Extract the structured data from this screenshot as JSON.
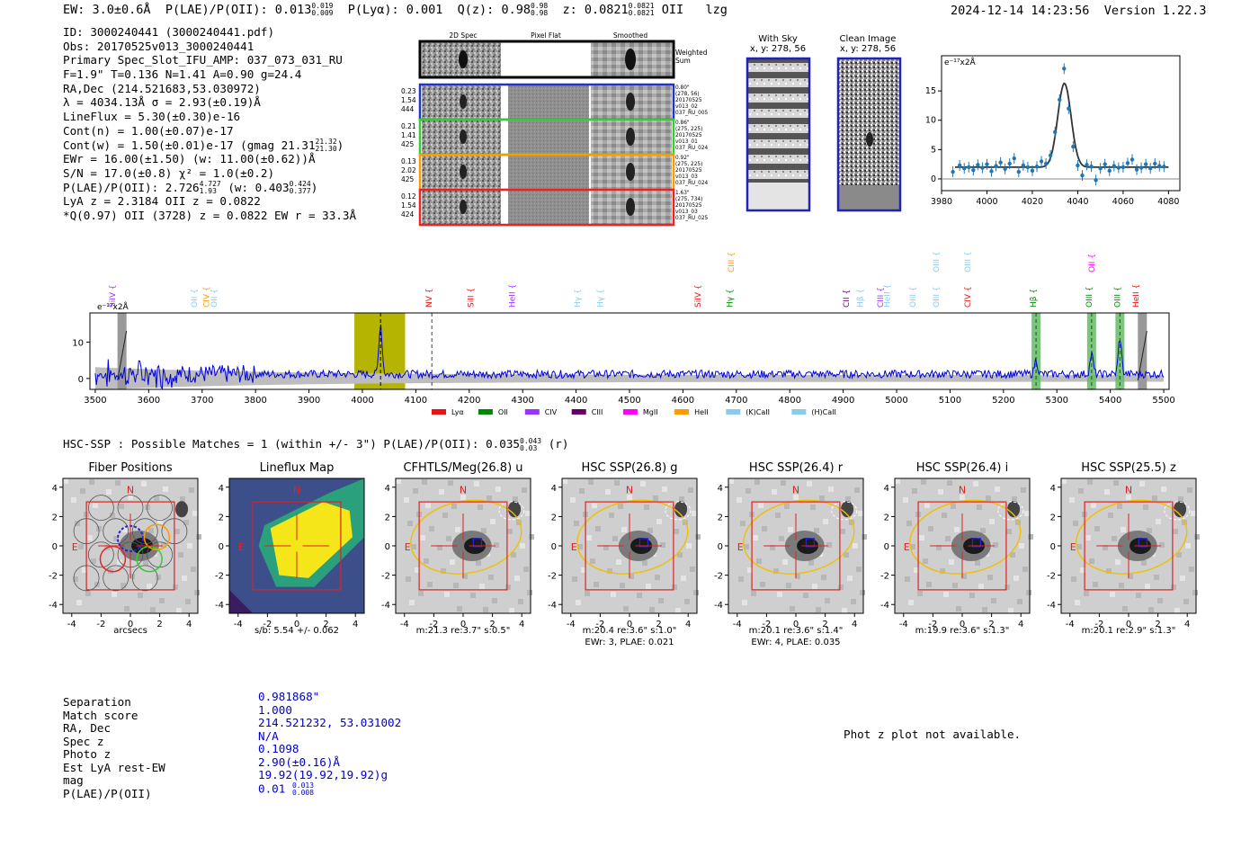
{
  "header": {
    "ew": "EW: 3.0±0.6Å",
    "plae": "P(LAE)/P(OII): 0.013",
    "plae_hi": "0.019",
    "plae_lo": "0.009",
    "plya": "P(Lyα): 0.001",
    "qz": "Q(z): 0.98",
    "qz_hi": "0.98",
    "qz_lo": "0.98",
    "z": "z: 0.0821",
    "z_hi": "0.0821",
    "z_lo": "0.0821",
    "z_line": "OII",
    "tag": "lzg",
    "timestamp": "2024-12-14 14:23:56",
    "version": "Version 1.22.3"
  },
  "info": {
    "id": "ID: 3000240441 (3000240441.pdf)",
    "obs": "Obs: 20170525v013_3000240441",
    "primary": "Primary Spec_Slot_IFU_AMP: 037_073_031_RU",
    "params": "F=1.9\"  T=0.136  N=1.41  A=0.90  g=24.4",
    "radec": "RA,Dec (214.521683,53.030972)",
    "lambda": "λ = 4034.13Å  σ = 2.93(±0.19)Å",
    "lineflux": "LineFlux = 5.30(±0.30)e-16",
    "contn": "Cont(n) = 1.00(±0.07)e-17",
    "contw": "Cont(w) = 1.50(±0.01)e-17 (gmag 21.31",
    "gmag_hi": "21.32",
    "gmag_lo": "21.30",
    "ewr": "EWr = 16.00(±1.50) (w: 11.00(±0.62))Å",
    "sn": "S/N = 17.0(±0.8)  χ² = 1.0(±0.2)",
    "plae": "P(LAE)/P(OII): 2.726",
    "plae_hi": "4.727",
    "plae_lo": "1.93",
    "plae_w": "(w: 0.403",
    "plae_w_hi": "0.424",
    "plae_w_lo": "0.377",
    "lya": "LyA z = 2.3184  OII z = 0.0822",
    "q": "*Q(0.97) OII (3728) z = 0.0822  EW r = 33.3Å"
  },
  "cutouts": {
    "col_headers": [
      "2D Spec",
      "Pixel Flat",
      "Smoothed"
    ],
    "weighted_label_1": "Weighted",
    "weighted_label_2": "Sum",
    "rows": [
      {
        "left": [
          "0.23",
          "1.54",
          "444"
        ],
        "right": [
          "0.80\"",
          "(278, 56)",
          "20170525",
          "v013_02",
          "037_RU_005"
        ],
        "color": "#2233cc"
      },
      {
        "left": [
          "0.21",
          "1.41",
          "425"
        ],
        "right": [
          "0.86\"",
          "(275, 225)",
          "20170525",
          "v013_01",
          "037_RU_024"
        ],
        "color": "#33cc33"
      },
      {
        "left": [
          "0.13",
          "2.02",
          "425"
        ],
        "right": [
          "0.92\"",
          "(275, 225)",
          "20170525",
          "v013_03",
          "037_RU_024"
        ],
        "color": "#ff9900"
      },
      {
        "left": [
          "0.12",
          "1.54",
          "424"
        ],
        "right": [
          "1.63\"",
          "(275, 734)",
          "20170525",
          "v013_03",
          "037_RU_025"
        ],
        "color": "#ee2222"
      }
    ]
  },
  "sky": {
    "with_sky_title": "With Sky",
    "with_sky_xy": "x, y: 278, 56",
    "clean_title": "Clean Image",
    "clean_xy": "x, y: 278, 56"
  },
  "chart_data": [
    {
      "type": "line",
      "title": "Line fit",
      "ylabel": "e⁻¹⁷x2Å",
      "xlim": [
        3980,
        4085
      ],
      "ylim": [
        -2,
        21
      ],
      "xticks": [
        3980,
        4000,
        4020,
        4040,
        4060,
        4080
      ],
      "yticks": [
        0,
        5,
        10,
        15
      ],
      "points": [
        [
          3985,
          1.2
        ],
        [
          3988,
          2.3
        ],
        [
          3990,
          1.8
        ],
        [
          3992,
          2.0
        ],
        [
          3994,
          1.5
        ],
        [
          3996,
          2.4
        ],
        [
          3998,
          1.9
        ],
        [
          4000,
          2.5
        ],
        [
          4002,
          1.3
        ],
        [
          4004,
          2.2
        ],
        [
          4006,
          2.8
        ],
        [
          4008,
          1.7
        ],
        [
          4010,
          2.6
        ],
        [
          4012,
          3.5
        ],
        [
          4014,
          1.2
        ],
        [
          4016,
          2.3
        ],
        [
          4018,
          2.0
        ],
        [
          4020,
          1.4
        ],
        [
          4022,
          2.1
        ],
        [
          4024,
          3.0
        ],
        [
          4026,
          2.6
        ],
        [
          4028,
          4.0
        ],
        [
          4030,
          8.0
        ],
        [
          4032,
          13.5
        ],
        [
          4034,
          18.8
        ],
        [
          4036,
          12.0
        ],
        [
          4038,
          5.5
        ],
        [
          4040,
          2.3
        ],
        [
          4042,
          0.6
        ],
        [
          4044,
          2.4
        ],
        [
          4046,
          2.1
        ],
        [
          4048,
          -0.2
        ],
        [
          4050,
          1.8
        ],
        [
          4052,
          2.5
        ],
        [
          4054,
          1.4
        ],
        [
          4056,
          2.2
        ],
        [
          4058,
          1.9
        ],
        [
          4060,
          2.0
        ],
        [
          4062,
          2.7
        ],
        [
          4064,
          3.3
        ],
        [
          4066,
          1.6
        ],
        [
          4068,
          1.9
        ],
        [
          4070,
          2.5
        ],
        [
          4072,
          1.8
        ],
        [
          4074,
          2.6
        ],
        [
          4076,
          2.2
        ],
        [
          4078,
          2.1
        ]
      ],
      "fit": {
        "center": 4034.13,
        "sigma": 2.93,
        "amp": 14.3,
        "cont": 2.0
      }
    },
    {
      "type": "line",
      "title": "Full spectrum",
      "ylabel": "e⁻¹⁷x2Å",
      "xlim": [
        3490,
        5510
      ],
      "ylim": [
        -3,
        18
      ],
      "xticks": [
        3500,
        3600,
        3700,
        3800,
        3900,
        4000,
        4100,
        4200,
        4300,
        4400,
        4500,
        4600,
        4700,
        4800,
        4900,
        5000,
        5100,
        5200,
        5300,
        5400,
        5500
      ],
      "yticks": [
        0,
        10
      ],
      "highlight_window": [
        3985,
        4080
      ],
      "marked_line": 4034,
      "dashed_line": 4130,
      "legend": [
        {
          "label": "Lyα",
          "color": "#ee1111"
        },
        {
          "label": "OII",
          "color": "#008800"
        },
        {
          "label": "CIV",
          "color": "#9933ff"
        },
        {
          "label": "CIII",
          "color": "#660066"
        },
        {
          "label": "MgII",
          "color": "#ff00ff"
        },
        {
          "label": "HeII",
          "color": "#ff9900"
        },
        {
          "label": "(K)CaII",
          "color": "#88ccee"
        },
        {
          "label": "(H)CaII",
          "color": "#88ccee"
        }
      ],
      "line_labels": [
        {
          "label": "SiIV",
          "wave": 3537,
          "color": "#9933ff",
          "level": 0
        },
        {
          "label": "OII",
          "wave": 3690,
          "color": "#88ccee",
          "level": 0
        },
        {
          "label": "CIV",
          "wave": 3713,
          "color": "#ff9900",
          "level": 0
        },
        {
          "label": "OII",
          "wave": 3727,
          "color": "#88ccee",
          "level": 0
        },
        {
          "label": "NV",
          "wave": 4130,
          "color": "#ee1111",
          "level": 0
        },
        {
          "label": "SiII",
          "wave": 4208,
          "color": "#ee1111",
          "level": 0
        },
        {
          "label": "HeII",
          "wave": 4285,
          "color": "#9933ff",
          "level": 0
        },
        {
          "label": "Hγ",
          "wave": 4407,
          "color": "#88ccee",
          "level": 0
        },
        {
          "label": "Hγ",
          "wave": 4450,
          "color": "#88ccee",
          "level": 0
        },
        {
          "label": "SiIV",
          "wave": 4633,
          "color": "#ee1111",
          "level": 0
        },
        {
          "label": "Hγ",
          "wave": 4693,
          "color": "#008800",
          "level": 0
        },
        {
          "label": "CIII",
          "wave": 4695,
          "color": "#ff9900",
          "level": 1
        },
        {
          "label": "CII",
          "wave": 4911,
          "color": "#660066",
          "level": 0
        },
        {
          "label": "Hβ",
          "wave": 4937,
          "color": "#88ccee",
          "level": 0
        },
        {
          "label": "CIII",
          "wave": 4975,
          "color": "#9933ff",
          "level": 0
        },
        {
          "label": "HeII",
          "wave": 4987,
          "color": "#88ccee",
          "level": 0
        },
        {
          "label": "OIII",
          "wave": 5035,
          "color": "#88ccee",
          "level": 0
        },
        {
          "label": "OIII",
          "wave": 5079,
          "color": "#88ccee",
          "level": 0
        },
        {
          "label": "OIII",
          "wave": 5079,
          "color": "#88ccee",
          "level": 1
        },
        {
          "label": "CIV",
          "wave": 5138,
          "color": "#ee1111",
          "level": 0
        },
        {
          "label": "OIII",
          "wave": 5138,
          "color": "#88ccee",
          "level": 1
        },
        {
          "label": "Hβ",
          "wave": 5261,
          "color": "#008800",
          "level": 0
        },
        {
          "label": "OIII",
          "wave": 5365,
          "color": "#008800",
          "level": 0
        },
        {
          "label": "OII",
          "wave": 5370,
          "color": "#ff00ff",
          "level": 1
        },
        {
          "label": "OIII",
          "wave": 5418,
          "color": "#008800",
          "level": 0
        },
        {
          "label": "HeII",
          "wave": 5453,
          "color": "#ee1111",
          "level": 0
        }
      ],
      "emission_bands": [
        5261,
        5365,
        5418
      ],
      "grey_bands": [
        3550,
        5460
      ]
    }
  ],
  "hsc": {
    "title": "HSC-SSP : Possible Matches = 1 (within +/- 3\")  P(LAE)/P(OII): 0.035",
    "plae_hi": "0.043",
    "plae_lo": "0.03",
    "band": "(r)",
    "panels": [
      {
        "title": "Fiber Positions",
        "cap1": "arcsecs",
        "cap2": ""
      },
      {
        "title": "Lineflux Map",
        "cap1": "s/b: 5.54 +/- 0.062",
        "cap2": ""
      },
      {
        "title": "CFHTLS/Meg(26.8) u",
        "cap1": "m:21.3  re:3.7\"  s:0.5\"",
        "cap2": ""
      },
      {
        "title": "HSC SSP(26.8) g",
        "cap1": "m:20.4  re:3.6\"  s:1.0\"",
        "cap2": "EWr: 3, PLAE: 0.021"
      },
      {
        "title": "HSC SSP(26.4) r",
        "cap1": "m:20.1  re:3.6\"  s:1.4\"",
        "cap2": "EWr: 4, PLAE: 0.035"
      },
      {
        "title": "HSC SSP(26.4) i",
        "cap1": "m:19.9  re:3.6\"  s:1.3\"",
        "cap2": ""
      },
      {
        "title": "HSC SSP(25.5) z",
        "cap1": "m:20.1  re:2.9\"  s:1.3\"",
        "cap2": ""
      }
    ],
    "ticks": [
      "-4",
      "-2",
      "0",
      "2",
      "4"
    ],
    "north": "N",
    "east": "E"
  },
  "summary": {
    "labels": [
      "Separation",
      "Match score",
      "RA, Dec",
      "Spec z",
      "Photo z",
      "Est LyA rest-EW",
      "mag",
      "P(LAE)/P(OII)"
    ],
    "values": [
      "0.981868\"",
      "1.000",
      "214.521232, 53.031002",
      "N/A",
      "0.1098",
      "2.90(±0.16)Å",
      "19.92(19.92,19.92)g",
      "0.01"
    ],
    "plae_hi": "0.013",
    "plae_lo": "0.008",
    "photz_msg": "Phot z plot not available."
  }
}
